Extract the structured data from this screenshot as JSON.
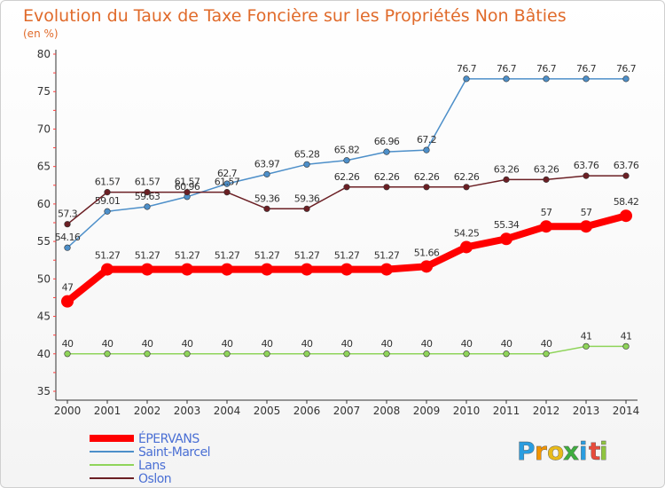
{
  "chart_data": {
    "type": "line",
    "title": "Evolution du Taux de Taxe Foncière sur les Propriétés Non Bâties",
    "ylabel": "(en %)",
    "xlabel": "",
    "ylim": [
      35,
      80
    ],
    "yticks": [
      35,
      40,
      45,
      50,
      55,
      60,
      65,
      70,
      75,
      80
    ],
    "grid": false,
    "legend_position": "bottom-left",
    "x": [
      "2000",
      "2001",
      "2002",
      "2003",
      "2004",
      "2005",
      "2006",
      "2007",
      "2008",
      "2009",
      "2010",
      "2011",
      "2012",
      "2013",
      "2014"
    ],
    "series": [
      {
        "name": "ÉPERVANS",
        "color": "#ff0000",
        "labels": [
          "47",
          "51.27",
          "51.27",
          "51.27",
          "51.27",
          "51.27",
          "51.27",
          "51.27",
          "51.27",
          "51.66",
          "54.25",
          "55.34",
          "57",
          "57",
          "58.42"
        ],
        "values": [
          47,
          51.27,
          51.27,
          51.27,
          51.27,
          51.27,
          51.27,
          51.27,
          51.27,
          51.66,
          54.25,
          55.34,
          57,
          57,
          58.42
        ]
      },
      {
        "name": "Saint-Marcel",
        "color": "#4d8fc9",
        "labels": [
          "54.16",
          "59.01",
          "59.63",
          "60.96",
          "62.7",
          "63.97",
          "65.28",
          "65.82",
          "66.96",
          "67.2",
          "76.7",
          "76.7",
          "76.7",
          "76.7",
          "76.7"
        ],
        "values": [
          54.16,
          59.01,
          59.63,
          60.96,
          62.7,
          63.97,
          65.28,
          65.82,
          66.96,
          67.2,
          76.7,
          76.7,
          76.7,
          76.7,
          76.7
        ]
      },
      {
        "name": "Lans",
        "color": "#8fd45a",
        "labels": [
          "40",
          "40",
          "40",
          "40",
          "40",
          "40",
          "40",
          "40",
          "40",
          "40",
          "40",
          "40",
          "40",
          "41",
          "41"
        ],
        "values": [
          40,
          40,
          40,
          40,
          40,
          40,
          40,
          40,
          40,
          40,
          40,
          40,
          40,
          41,
          41
        ]
      },
      {
        "name": "Oslon",
        "color": "#6b1f24",
        "labels": [
          "57.3",
          "61.57",
          "61.57",
          "61.57",
          "61.57",
          "59.36",
          "59.36",
          "62.26",
          "62.26",
          "62.26",
          "62.26",
          "63.26",
          "63.26",
          "63.76",
          "63.76"
        ],
        "values": [
          57.3,
          61.57,
          61.57,
          61.57,
          61.57,
          59.36,
          59.36,
          62.26,
          62.26,
          62.26,
          62.26,
          63.26,
          63.26,
          63.76,
          63.76
        ]
      }
    ]
  },
  "brand": {
    "letters": [
      "P",
      "r",
      "o",
      "x",
      "i",
      "t",
      "i"
    ],
    "colors": [
      "#2a9de0",
      "#f29400",
      "#e8ba1a",
      "#3fae3f",
      "#2a9de0",
      "#e74c3c",
      "#8fc43f"
    ]
  },
  "colors": {
    "title": "#e06a2a",
    "axis": "#333333",
    "tick_text": "#333333",
    "point_label": "#333333",
    "legend_text": "#4a6fd4"
  }
}
